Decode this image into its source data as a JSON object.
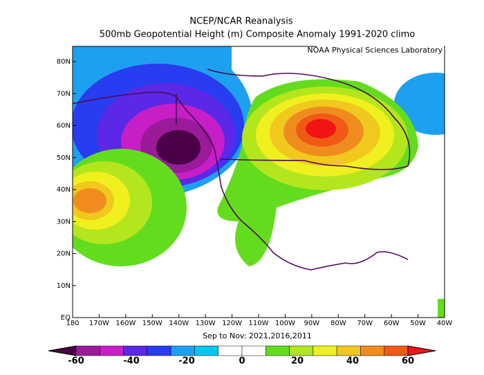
{
  "header": {
    "title": "NCEP/NCAR Reanalysis",
    "subtitle": "500mb Geopotential Height (m) Composite Anomaly 1991-2020 climo",
    "source": "NOAA Physical Sciences Laboratory"
  },
  "map": {
    "lat_labels": [
      "80N",
      "70N",
      "60N",
      "50N",
      "40N",
      "30N",
      "20N",
      "10N",
      "EQ"
    ],
    "lon_labels": [
      "180",
      "170W",
      "160W",
      "150W",
      "140W",
      "130W",
      "120W",
      "110W",
      "100W",
      "90W",
      "80W",
      "70W",
      "60W",
      "50W",
      "40W"
    ],
    "period": "Sep to Nov: 2021,2016,2011"
  },
  "colorbar": {
    "labels": [
      "-60",
      "-40",
      "-20",
      "0",
      "20",
      "40",
      "60"
    ],
    "colors": [
      "#4a0046",
      "#9a1a9a",
      "#c81ec8",
      "#5a28e6",
      "#283cf0",
      "#1ea0f0",
      "#00c8f0",
      "#ffffff",
      "#ffffff",
      "#64dc1e",
      "#b4e61e",
      "#f0f01e",
      "#f0c81e",
      "#f08c1e",
      "#f05a14",
      "#f01414"
    ]
  }
}
